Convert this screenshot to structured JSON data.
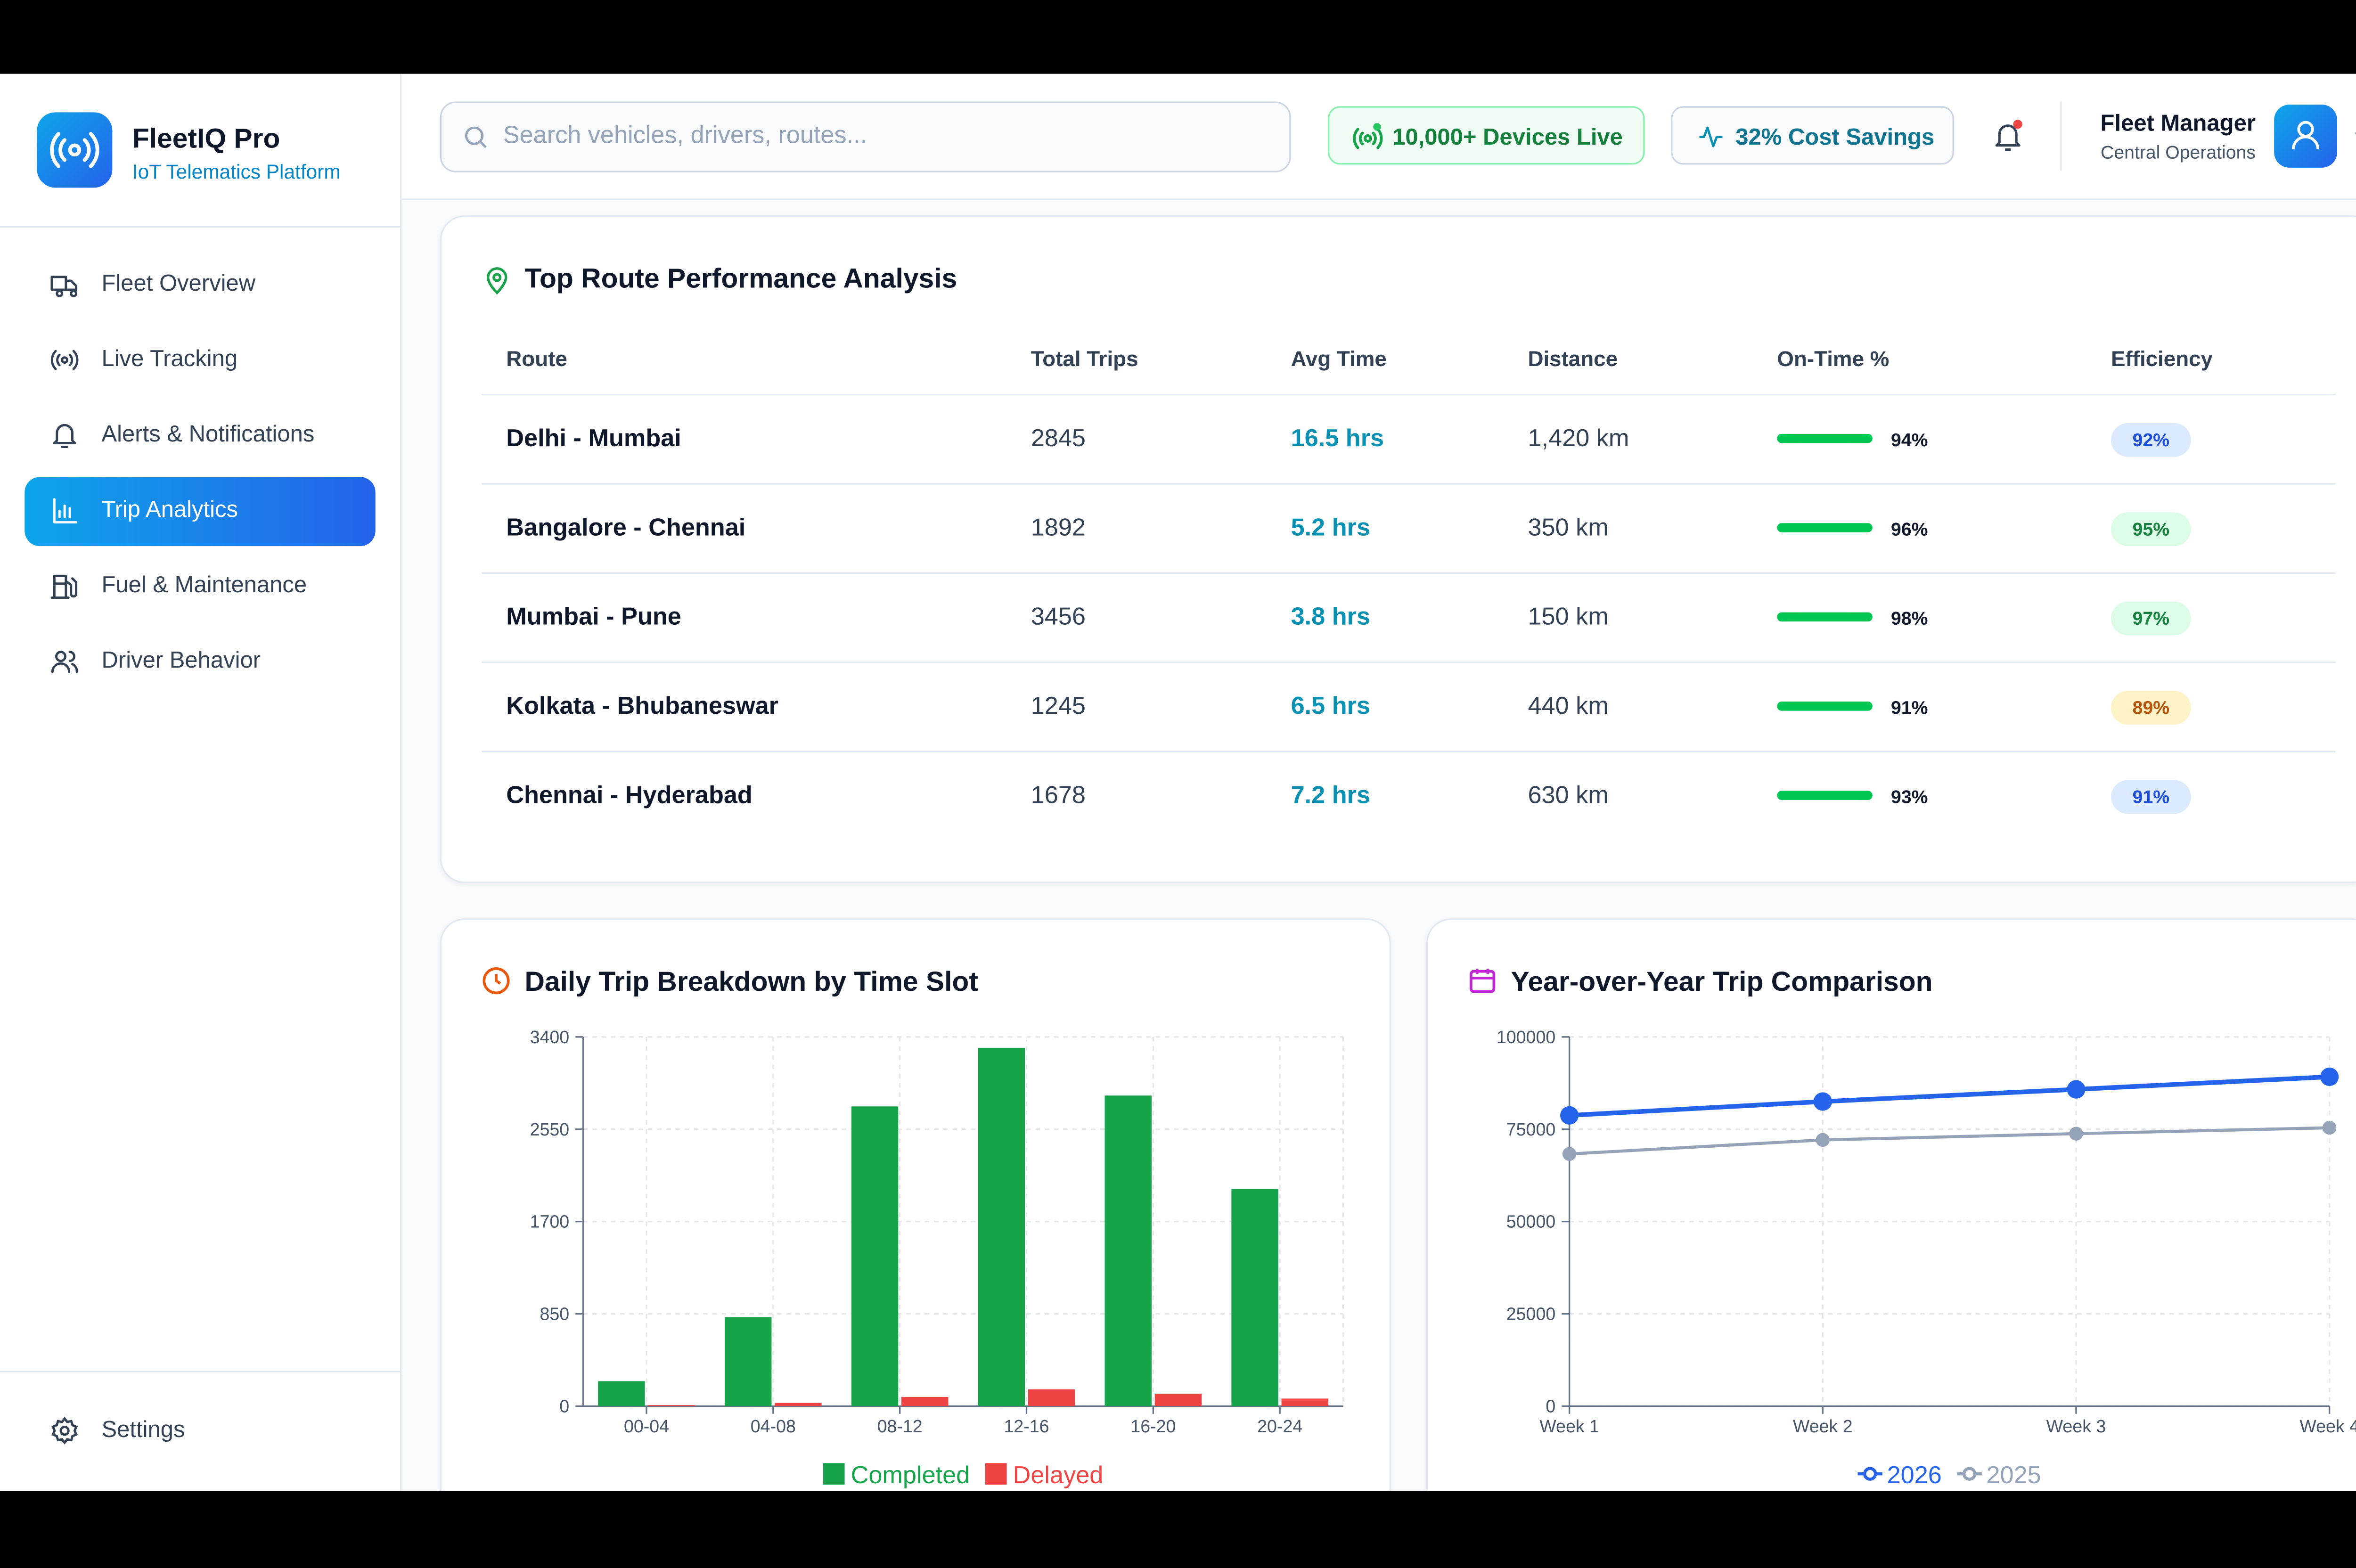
{
  "sidebar": {
    "brand": "FleetIQ Pro",
    "tagline": "IoT Telematics Platform",
    "nav": [
      "Fleet Overview",
      "Live Tracking",
      "Alerts & Notifications",
      "Trip Analytics",
      "Fuel & Maintenance",
      "Driver Behavior"
    ],
    "settings": "Settings"
  },
  "header": {
    "search_placeholder": "Search vehicles, drivers, routes...",
    "devices_badge": "10,000+ Devices Live",
    "savings_badge": "32% Cost Savings",
    "user_name": "Fleet Manager",
    "user_role": "Central Operations"
  },
  "table": {
    "title": "Top Route Performance Analysis",
    "headers": [
      "Route",
      "Total Trips",
      "Avg Time",
      "Distance",
      "On-Time %",
      "Efficiency"
    ],
    "rows": [
      [
        "Delhi - Mumbai",
        "2845",
        "16.5 hrs",
        "1,420 km",
        "94%",
        "92%"
      ],
      [
        "Bangalore - Chennai",
        "1892",
        "5.2 hrs",
        "350 km",
        "96%",
        "95%"
      ],
      [
        "Mumbai - Pune",
        "3456",
        "3.8 hrs",
        "150 km",
        "98%",
        "97%"
      ],
      [
        "Kolkata - Bhubaneswar",
        "1245",
        "6.5 hrs",
        "440 km",
        "91%",
        "89%"
      ],
      [
        "Chennai - Hyderabad",
        "1678",
        "7.2 hrs",
        "630 km",
        "93%",
        "91%"
      ]
    ]
  },
  "chart_data": [
    {
      "type": "bar",
      "title": "Daily Trip Breakdown by Time Slot",
      "categories": [
        "00-04",
        "04-08",
        "08-12",
        "12-16",
        "16-20",
        "20-24"
      ],
      "series": [
        {
          "name": "Completed",
          "color": "#16a34a",
          "values": [
            230,
            820,
            2760,
            3300,
            2860,
            2000
          ]
        },
        {
          "name": "Delayed",
          "color": "#ef4444",
          "values": [
            10,
            30,
            85,
            155,
            115,
            70
          ]
        }
      ],
      "ylim": [
        0,
        3400
      ],
      "yticks": [
        0,
        850,
        1700,
        2550,
        3400
      ],
      "grid": true,
      "legend": "bottom"
    },
    {
      "type": "line",
      "title": "Year-over-Year Trip Comparison",
      "categories": [
        "Week 1",
        "Week 2",
        "Week 3",
        "Week 4"
      ],
      "series": [
        {
          "name": "2026",
          "color": "#2563eb",
          "values": [
            78750,
            82500,
            85800,
            89200
          ]
        },
        {
          "name": "2025",
          "color": "#94a3b8",
          "values": [
            68300,
            72100,
            73800,
            75400
          ]
        }
      ],
      "ylim": [
        0,
        100000
      ],
      "yticks": [
        0,
        25000,
        50000,
        75000,
        100000
      ],
      "grid": true,
      "legend": "bottom"
    }
  ]
}
